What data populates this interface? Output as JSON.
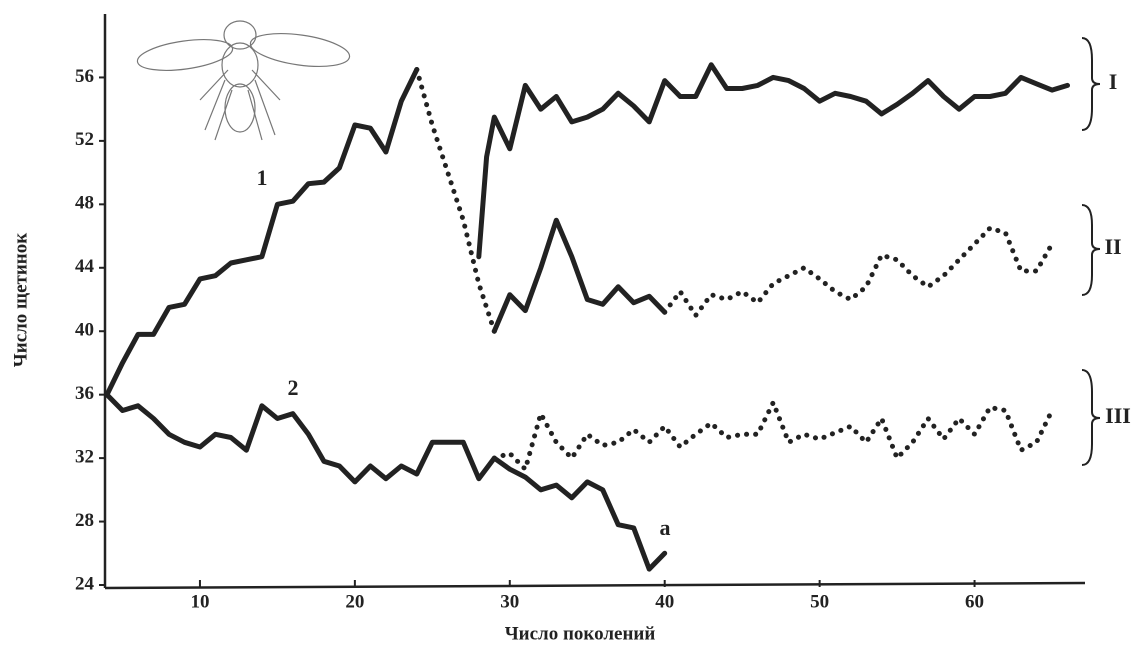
{
  "chart_data": {
    "type": "line",
    "x_label": "Число поколений",
    "y_label": "Число щетинок",
    "xlim": [
      4,
      67
    ],
    "ylim": [
      24,
      60
    ],
    "xticks": [
      10,
      20,
      30,
      40,
      50,
      60
    ],
    "yticks": [
      24,
      28,
      32,
      36,
      40,
      44,
      48,
      52,
      56
    ],
    "color": "#222222",
    "labels": [
      "1",
      "2",
      "a",
      "I",
      "II",
      "III"
    ],
    "series": [
      {
        "style": "solid",
        "x": [
          4,
          5,
          6,
          7,
          8,
          9,
          10,
          11,
          12,
          13,
          14,
          15,
          16,
          17,
          18,
          19,
          20,
          21,
          22,
          23,
          24
        ],
        "values": [
          36,
          38,
          39.8,
          39.8,
          41.5,
          41.7,
          43.3,
          43.5,
          44.3,
          44.5,
          44.7,
          48,
          48.2,
          49.3,
          49.4,
          50.3,
          53,
          52.8,
          51.3,
          54.5,
          56.5
        ]
      },
      {
        "style": "dotted",
        "x": [
          24,
          25,
          26,
          27,
          28,
          29
        ],
        "values": [
          56.5,
          53,
          50,
          47,
          43,
          40
        ]
      },
      {
        "style": "solid",
        "x": [
          28,
          28.5,
          29,
          30,
          31,
          32,
          33,
          34,
          35,
          36,
          37,
          38,
          39,
          40,
          41,
          42,
          43,
          44,
          45,
          46,
          47,
          48,
          49,
          50,
          51,
          52,
          53,
          54,
          55,
          56,
          57,
          58,
          59,
          60,
          61,
          62,
          63,
          64,
          65,
          66
        ],
        "values": [
          44.7,
          51,
          53.5,
          51.5,
          55.5,
          54,
          54.8,
          53.2,
          53.5,
          54,
          55,
          54.2,
          53.2,
          55.8,
          54.8,
          54.8,
          56.8,
          55.3,
          55.3,
          55.5,
          56,
          55.8,
          55.3,
          54.5,
          55,
          54.8,
          54.5,
          53.7,
          54.3,
          55,
          55.8,
          54.8,
          54,
          54.8,
          54.8,
          55,
          56,
          55.6,
          55.2,
          55.5
        ]
      },
      {
        "style": "solid",
        "x": [
          29,
          30,
          31,
          32,
          33,
          34,
          35,
          36,
          37,
          38,
          39,
          40
        ],
        "values": [
          40,
          42.3,
          41.3,
          44,
          47,
          44.7,
          42,
          41.7,
          42.8,
          41.8,
          42.2,
          41.2
        ]
      },
      {
        "style": "dotted",
        "x": [
          40,
          41,
          42,
          43,
          44,
          45,
          46,
          47,
          48,
          49,
          50,
          51,
          52,
          53,
          54,
          55,
          56,
          57,
          58,
          59,
          60,
          61,
          62,
          63,
          64,
          65
        ],
        "values": [
          41.2,
          42.5,
          41,
          42.3,
          42,
          42.5,
          41.8,
          43,
          43.5,
          44,
          43.3,
          42.5,
          42,
          42.8,
          44.8,
          44.5,
          43.5,
          42.8,
          43.5,
          44.5,
          45.5,
          46.5,
          46.2,
          43.8,
          43.8,
          45.5
        ]
      },
      {
        "style": "solid",
        "x": [
          4,
          5,
          6,
          7,
          8,
          9,
          10,
          11,
          12,
          13,
          14,
          15,
          16,
          17,
          18,
          19,
          20,
          21,
          22,
          23,
          24,
          25,
          26,
          27,
          28,
          29,
          30,
          31,
          32,
          33,
          34,
          35,
          36,
          37,
          38,
          39,
          40
        ],
        "values": [
          36,
          35,
          35.3,
          34.5,
          33.5,
          33,
          32.7,
          33.5,
          33.3,
          32.5,
          35.3,
          34.5,
          34.8,
          33.5,
          31.8,
          31.5,
          30.5,
          31.5,
          30.7,
          31.5,
          31,
          33,
          33,
          33,
          30.7,
          32,
          31.3,
          30.8,
          30,
          30.3,
          29.5,
          30.5,
          30,
          27.8,
          27.6,
          25,
          26
        ]
      },
      {
        "style": "dotted",
        "x": [
          29,
          30,
          31,
          32,
          33,
          34,
          35,
          36,
          37,
          38,
          39,
          40,
          41,
          42,
          43,
          44,
          45,
          46,
          47,
          48,
          49,
          50,
          51,
          52,
          53,
          54,
          55,
          56,
          57,
          58,
          59,
          60,
          61,
          62,
          63,
          64,
          65
        ],
        "values": [
          32,
          32.3,
          31.3,
          34.8,
          33,
          32,
          33.5,
          32.8,
          33,
          33.8,
          33,
          34,
          32.7,
          33.5,
          34.2,
          33.3,
          33.5,
          33.5,
          35.5,
          33,
          33.5,
          33.2,
          33.6,
          34,
          33,
          34.5,
          32,
          33,
          34.5,
          33.2,
          34.5,
          33.5,
          35.2,
          35,
          32.5,
          33,
          35
        ]
      }
    ]
  }
}
